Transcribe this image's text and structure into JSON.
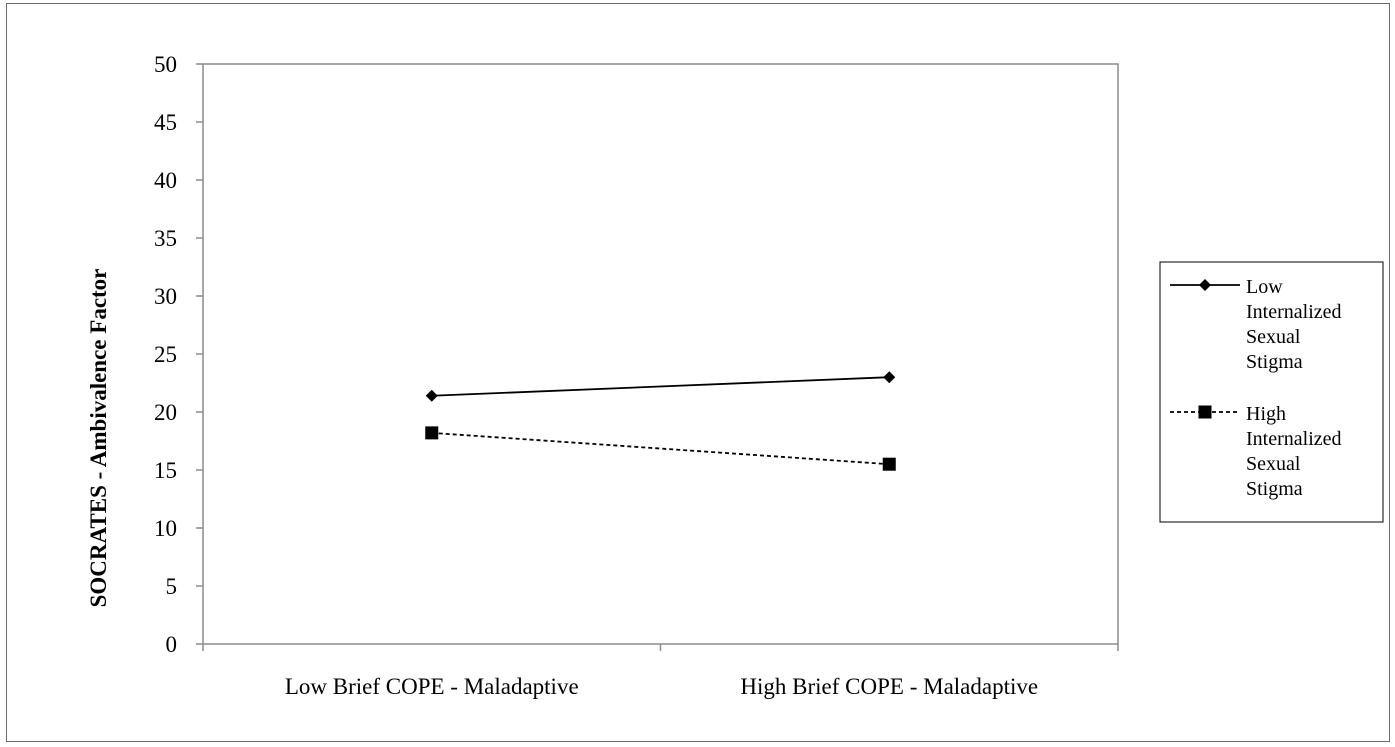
{
  "chart_data": {
    "type": "line",
    "categories": [
      "Low Brief COPE - Maladaptive",
      "High Brief COPE - Maladaptive"
    ],
    "series": [
      {
        "name": "Low Internalized Sexual Stigma",
        "legend_lines": [
          "Low",
          "Internalized",
          "Sexual",
          "Stigma"
        ],
        "values": [
          21.4,
          23.0
        ],
        "marker": "diamond",
        "line_style": "solid",
        "color": "#000000"
      },
      {
        "name": "High Internalized Sexual Stigma",
        "legend_lines": [
          "High",
          "Internalized",
          "Sexual",
          "Stigma"
        ],
        "values": [
          18.2,
          15.5
        ],
        "marker": "square",
        "line_style": "dashed",
        "color": "#000000"
      }
    ],
    "title": "",
    "xlabel": "",
    "ylabel": "SOCRATES - Ambivalence Factor",
    "ylim": [
      0,
      50
    ],
    "yticks": [
      0,
      5,
      10,
      15,
      20,
      25,
      30,
      35,
      40,
      45,
      50
    ],
    "grid": false,
    "legend_position": "right"
  }
}
